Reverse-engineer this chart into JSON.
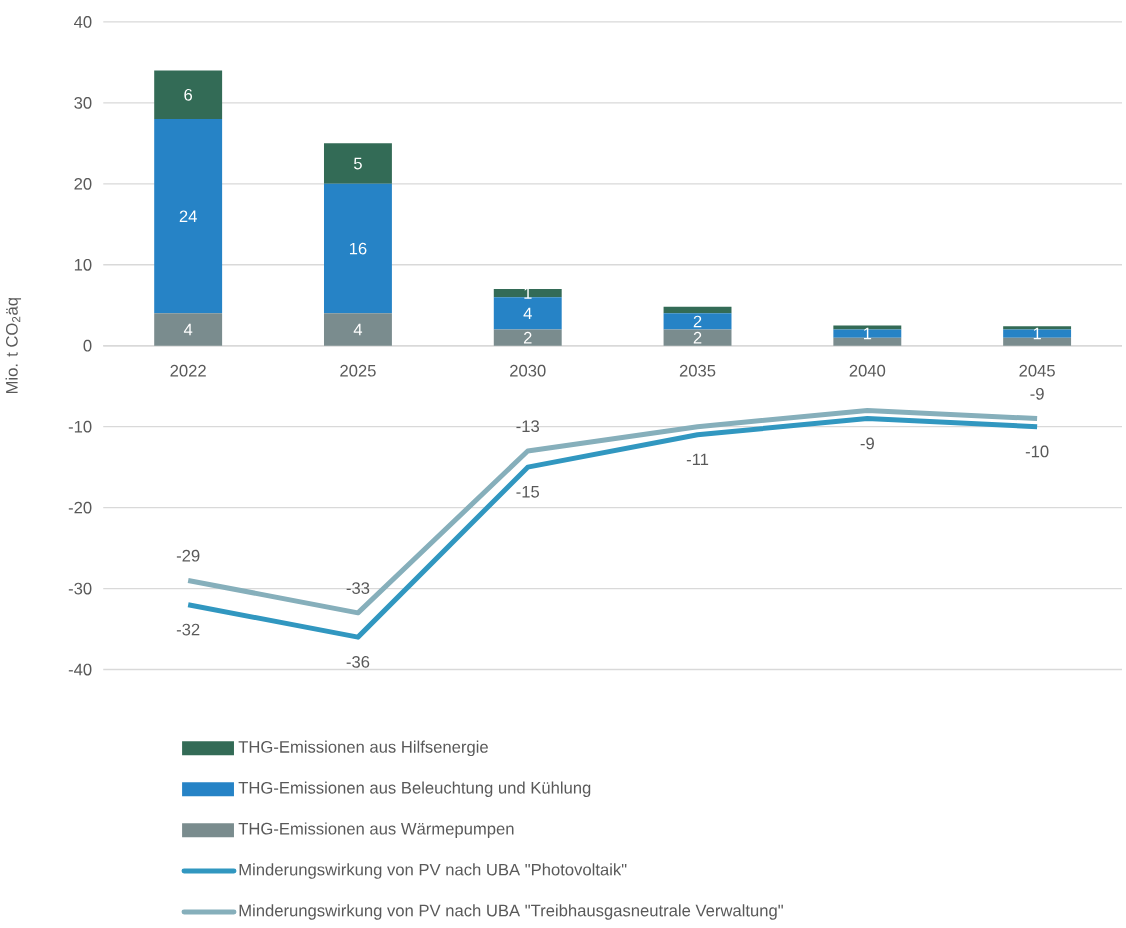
{
  "chart_data": {
    "type": "bar",
    "stacked": true,
    "ylabel": "Mio. t CO$_{2}$äq",
    "categories": [
      "2022",
      "2025",
      "2030",
      "2035",
      "2040",
      "2045"
    ],
    "series": [
      {
        "name": "THG-Emissionen aus Wärmepumpen",
        "color": "#7a8c8e",
        "values": [
          4,
          4,
          2,
          2,
          1,
          1
        ],
        "value_labels": [
          "4",
          "4",
          "2",
          "2",
          null,
          null
        ]
      },
      {
        "name": "THG-Emissionen aus Beleuchtung und Kühlung",
        "color": "#2683c6",
        "values": [
          24,
          16,
          4,
          2,
          1,
          1
        ],
        "value_labels": [
          "24",
          "16",
          "4",
          "2",
          "1",
          "1"
        ]
      },
      {
        "name": "THG-Emissionen aus Hilfsenergie",
        "color": "#336b56",
        "values": [
          6,
          5,
          1,
          0.8,
          0.5,
          0.4
        ],
        "value_labels": [
          "6",
          "5",
          "1",
          null,
          null,
          null
        ]
      },
      {
        "name": "Minderungswirkung von PV nach UBA \"Photovoltaik\"",
        "type": "line",
        "color": "#3197c0",
        "values": [
          -32,
          -36,
          -15,
          -11,
          -9,
          -10
        ],
        "value_labels": [
          "-32",
          "-36",
          "-15",
          "-11",
          "-9",
          "-10"
        ]
      },
      {
        "name": "Minderungswirkung von PV nach UBA \"Treibhausgasneutrale Verwaltung\"",
        "type": "line",
        "color": "#86afbb",
        "values": [
          -29,
          -33,
          -13,
          -10,
          -8,
          -9
        ],
        "value_labels": [
          "-29",
          "-33",
          "-13",
          null,
          null,
          "-9"
        ]
      }
    ],
    "ylim": [
      -40,
      40
    ],
    "yticks": [
      -40,
      -30,
      -20,
      -10,
      0,
      10,
      20,
      30,
      40
    ],
    "grid": "y",
    "legend": "bottom",
    "marker": "none",
    "line_style": "solid"
  }
}
